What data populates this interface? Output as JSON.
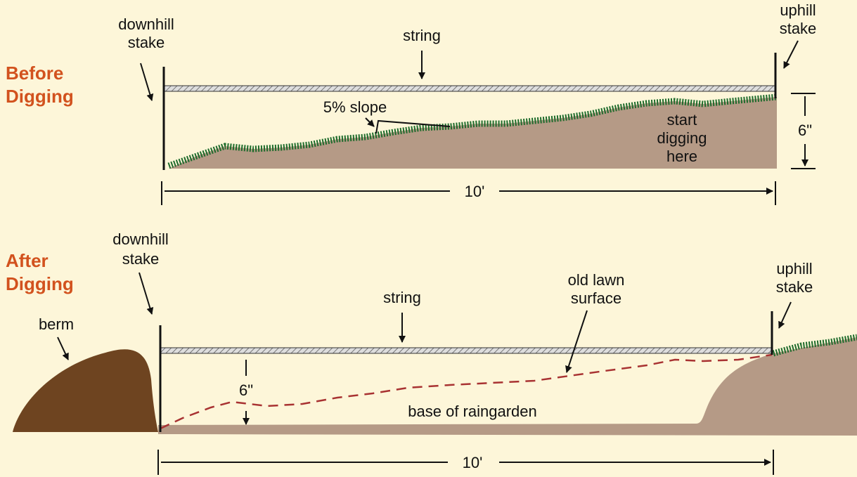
{
  "before": {
    "heading": [
      "Before",
      "Digging"
    ],
    "downhill_stake": [
      "downhill",
      "stake"
    ],
    "uphill_stake": [
      "uphill",
      "stake"
    ],
    "string": "string",
    "slope": "5% slope",
    "start_digging": [
      "start",
      "digging",
      "here"
    ],
    "height": "6\"",
    "length": "10'"
  },
  "after": {
    "heading": [
      "After",
      "Digging"
    ],
    "downhill_stake": [
      "downhill",
      "stake"
    ],
    "uphill_stake": [
      "uphill",
      "stake"
    ],
    "string": "string",
    "berm": "berm",
    "old_lawn": [
      "old lawn",
      "surface"
    ],
    "height": "6\"",
    "base": "base of raingarden",
    "length": "10'"
  }
}
